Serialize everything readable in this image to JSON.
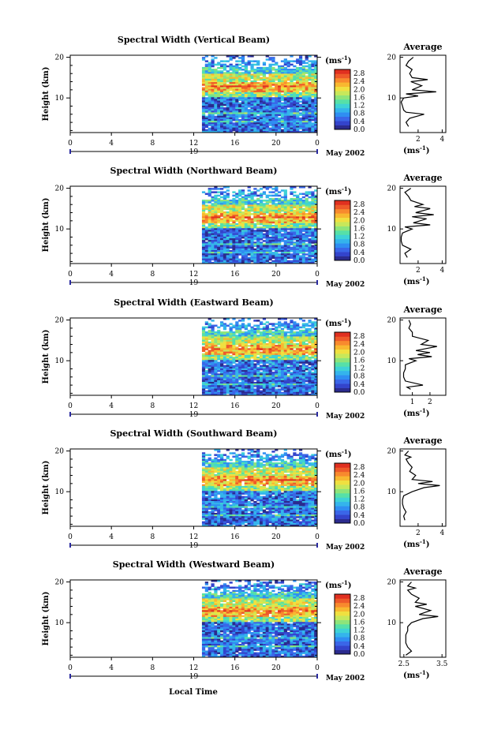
{
  "panels": [
    {
      "title": "Spectral Width (Vertical Beam)",
      "ylabel": "Height (km)",
      "avg_xticks": [
        "2",
        "4"
      ],
      "avg_xrange": [
        0.5,
        4.3
      ],
      "avg_profile": [
        [
          1.2,
          3
        ],
        [
          1.0,
          4
        ],
        [
          1.3,
          5
        ],
        [
          2.5,
          6
        ],
        [
          1.0,
          6.5
        ],
        [
          0.8,
          7
        ],
        [
          0.7,
          8
        ],
        [
          0.6,
          9
        ],
        [
          0.8,
          10
        ],
        [
          2.0,
          10.5
        ],
        [
          1.0,
          11
        ],
        [
          3.5,
          11.5
        ],
        [
          1.5,
          12
        ],
        [
          2.3,
          13
        ],
        [
          1.4,
          14
        ],
        [
          2.8,
          14.5
        ],
        [
          1.5,
          15
        ],
        [
          1.3,
          16
        ],
        [
          1.5,
          17
        ],
        [
          1.0,
          18
        ],
        [
          1.2,
          19
        ],
        [
          1.6,
          20
        ]
      ]
    },
    {
      "title": "Spectral Width (Northward Beam)",
      "ylabel": "Height (km)",
      "avg_xticks": [
        "2",
        "4"
      ],
      "avg_xrange": [
        0.5,
        4.3
      ],
      "avg_profile": [
        [
          1.1,
          3
        ],
        [
          0.9,
          4
        ],
        [
          1.4,
          5
        ],
        [
          0.7,
          6
        ],
        [
          0.6,
          7
        ],
        [
          0.6,
          8
        ],
        [
          0.7,
          9
        ],
        [
          1.5,
          10
        ],
        [
          0.9,
          10.5
        ],
        [
          3.0,
          11
        ],
        [
          1.6,
          11.5
        ],
        [
          2.7,
          12.5
        ],
        [
          1.5,
          13
        ],
        [
          3.3,
          13.5
        ],
        [
          1.8,
          14
        ],
        [
          3.0,
          15
        ],
        [
          1.7,
          15.5
        ],
        [
          2.4,
          16
        ],
        [
          1.4,
          17
        ],
        [
          1.2,
          18
        ],
        [
          0.9,
          19
        ],
        [
          1.4,
          20
        ]
      ]
    },
    {
      "title": "Spectral Width (Eastward Beam)",
      "ylabel": "Height (km)",
      "avg_xticks": [
        "1",
        "2"
      ],
      "avg_xrange": [
        0.3,
        2.9
      ],
      "avg_profile": [
        [
          0.9,
          3
        ],
        [
          0.7,
          3.5
        ],
        [
          1.6,
          4
        ],
        [
          0.6,
          5
        ],
        [
          0.5,
          6
        ],
        [
          0.5,
          7
        ],
        [
          0.6,
          8
        ],
        [
          0.6,
          9
        ],
        [
          1.2,
          10
        ],
        [
          0.8,
          10.5
        ],
        [
          2.1,
          11
        ],
        [
          1.3,
          11.5
        ],
        [
          2.0,
          12
        ],
        [
          1.2,
          12.5
        ],
        [
          1.8,
          13
        ],
        [
          2.4,
          13.5
        ],
        [
          1.5,
          14
        ],
        [
          1.9,
          15
        ],
        [
          1.0,
          16
        ],
        [
          1.0,
          17
        ],
        [
          0.8,
          18
        ],
        [
          0.9,
          19
        ],
        [
          0.8,
          20
        ]
      ]
    },
    {
      "title": "Spectral Width (Southward Beam)",
      "ylabel": "Height (km)",
      "avg_xticks": [
        "2",
        "4"
      ],
      "avg_xrange": [
        0.5,
        4.3
      ],
      "avg_profile": [
        [
          0.9,
          3
        ],
        [
          0.8,
          4
        ],
        [
          1.0,
          5
        ],
        [
          0.8,
          6
        ],
        [
          0.7,
          7
        ],
        [
          0.7,
          8
        ],
        [
          0.8,
          9
        ],
        [
          1.5,
          10
        ],
        [
          2.5,
          11
        ],
        [
          3.8,
          11.5
        ],
        [
          2.0,
          12
        ],
        [
          3.2,
          12.5
        ],
        [
          1.5,
          13
        ],
        [
          1.8,
          14
        ],
        [
          1.3,
          15
        ],
        [
          1.5,
          16
        ],
        [
          1.2,
          17
        ],
        [
          1.0,
          18
        ],
        [
          1.4,
          18.5
        ],
        [
          0.9,
          19
        ],
        [
          1.2,
          20
        ]
      ]
    },
    {
      "title": "Spectral Width (Westward Beam)",
      "ylabel": "Height (km)",
      "avg_xticks": [
        "2.5",
        "3.5"
      ],
      "avg_xrange": [
        2.4,
        3.6
      ],
      "avg_profile": [
        [
          2.55,
          2
        ],
        [
          2.7,
          3
        ],
        [
          2.6,
          4
        ],
        [
          2.55,
          5
        ],
        [
          2.55,
          6
        ],
        [
          2.55,
          7
        ],
        [
          2.6,
          8
        ],
        [
          2.6,
          9
        ],
        [
          2.7,
          10
        ],
        [
          3.0,
          11
        ],
        [
          3.4,
          11.5
        ],
        [
          2.9,
          12
        ],
        [
          3.2,
          13
        ],
        [
          2.8,
          14
        ],
        [
          3.1,
          14.5
        ],
        [
          2.8,
          15
        ],
        [
          2.9,
          16
        ],
        [
          2.7,
          17
        ],
        [
          2.6,
          18
        ],
        [
          2.8,
          18.5
        ],
        [
          2.6,
          19
        ],
        [
          2.7,
          20
        ]
      ]
    }
  ],
  "chart_data": {
    "type": "heatmap",
    "x_ticks": [
      "0",
      "4",
      "8",
      "12",
      "16",
      "20",
      "0"
    ],
    "y_ticks": [
      "20",
      "10"
    ],
    "y_range_km": [
      1.5,
      20.5
    ],
    "time_range_h": [
      0,
      24
    ],
    "data_start_hour": 12.8,
    "day_label": "19",
    "month_label": "May 2002",
    "xlabel": "Local Time",
    "colorbar": {
      "unit_base": "(ms",
      "unit_exp": "-1",
      "unit_close": ")",
      "tick_labels": [
        "2.8",
        "2.4",
        "2.0",
        "1.6",
        "1.2",
        "0.8",
        "0.4",
        "0.0"
      ],
      "range": [
        0.0,
        3.0
      ],
      "colors": [
        "#2b2b8e",
        "#3344cc",
        "#3a66e8",
        "#2f8ef2",
        "#34b4ec",
        "#3ed2d6",
        "#56e0a8",
        "#8ee47a",
        "#c8e85a",
        "#f0e040",
        "#f8b830",
        "#f88a2e",
        "#ee5a2a",
        "#e03020"
      ]
    },
    "avg_title": "Average",
    "avg_unit_base": "(ms",
    "avg_unit_exp": "-1",
    "avg_unit_close": ")"
  }
}
